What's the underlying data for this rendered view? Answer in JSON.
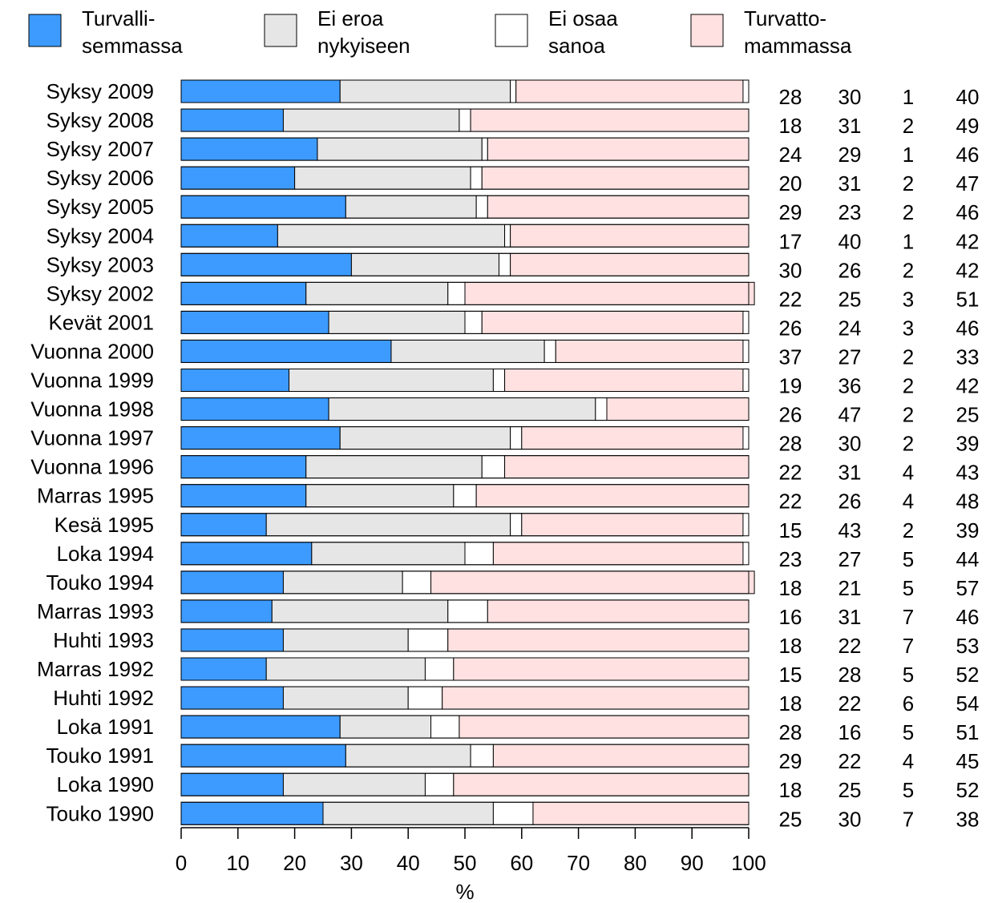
{
  "chart_data": {
    "type": "bar",
    "orientation": "horizontal",
    "stacked": true,
    "xlabel": "%",
    "xlim": [
      0,
      100
    ],
    "xticks": [
      0,
      10,
      20,
      30,
      40,
      50,
      60,
      70,
      80,
      90,
      100
    ],
    "grid": false,
    "legend_position": "top",
    "categories": [
      "Syksy 2009",
      "Syksy 2008",
      "Syksy 2007",
      "Syksy 2006",
      "Syksy 2005",
      "Syksy 2004",
      "Syksy 2003",
      "Syksy 2002",
      "Kevät 2001",
      "Vuonna 2000",
      "Vuonna 1999",
      "Vuonna 1998",
      "Vuonna 1997",
      "Vuonna 1996",
      "Marras 1995",
      "Kesä 1995",
      "Loka 1994",
      "Touko 1994",
      "Marras 1993",
      "Huhti 1993",
      "Marras 1992",
      "Huhti 1992",
      "Loka 1991",
      "Touko 1991",
      "Loka 1990",
      "Touko 1990"
    ],
    "series": [
      {
        "name_lines": [
          "Turvalli-",
          "semmassa"
        ],
        "color": "#3d9bff",
        "values": [
          28,
          18,
          24,
          20,
          29,
          17,
          30,
          22,
          26,
          37,
          19,
          26,
          28,
          22,
          22,
          15,
          23,
          18,
          16,
          18,
          15,
          18,
          28,
          29,
          18,
          25
        ]
      },
      {
        "name_lines": [
          "Ei eroa",
          "nykyiseen"
        ],
        "color": "#e6e6e6",
        "values": [
          30,
          31,
          29,
          31,
          23,
          40,
          26,
          25,
          24,
          27,
          36,
          47,
          30,
          31,
          26,
          43,
          27,
          21,
          31,
          22,
          28,
          22,
          16,
          22,
          25,
          30
        ]
      },
      {
        "name_lines": [
          "Ei osaa",
          "sanoa"
        ],
        "color": "#ffffff",
        "values": [
          1,
          2,
          1,
          2,
          2,
          1,
          2,
          3,
          3,
          2,
          2,
          2,
          2,
          4,
          4,
          2,
          5,
          5,
          7,
          7,
          5,
          6,
          5,
          4,
          5,
          7
        ]
      },
      {
        "name_lines": [
          "Turvatto-",
          "mammassa"
        ],
        "color": "#ffe1e1",
        "values": [
          40,
          49,
          46,
          47,
          46,
          42,
          42,
          51,
          46,
          33,
          42,
          25,
          39,
          43,
          48,
          39,
          44,
          57,
          46,
          53,
          52,
          54,
          51,
          45,
          52,
          38
        ]
      }
    ]
  }
}
